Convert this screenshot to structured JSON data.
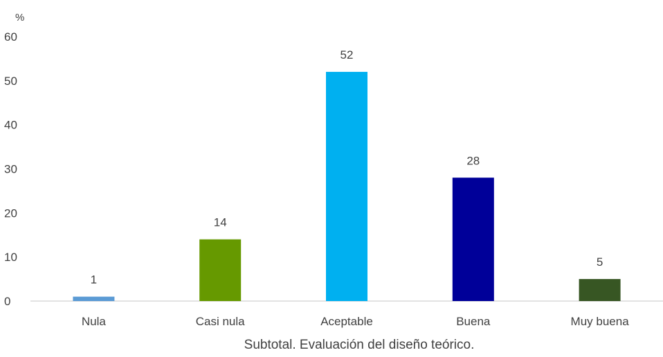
{
  "chart_data": {
    "type": "bar",
    "ylabel": "%",
    "xlabel": "Subtotal. Evaluación del diseño teórico.",
    "categories": [
      "Nula",
      "Casi nula",
      "Aceptable",
      "Buena",
      "Muy buena"
    ],
    "values": [
      1,
      14,
      52,
      28,
      5
    ],
    "data_labels": [
      "1",
      "14",
      "52",
      "28",
      "5"
    ],
    "colors": [
      "#5b9bd5",
      "#669900",
      "#00b0f0",
      "#000099",
      "#375623"
    ],
    "ylim": [
      0,
      60
    ],
    "yticks": [
      "0",
      "10",
      "20",
      "30",
      "40",
      "50",
      "60"
    ],
    "grid": false,
    "legend": "none"
  }
}
